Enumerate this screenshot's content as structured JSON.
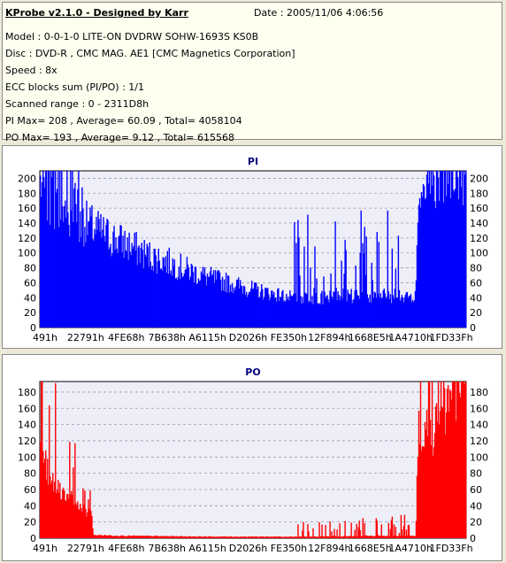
{
  "header": {
    "title": "KProbe v2.1.0 - Designed by Karr",
    "date": "Date : 2005/11/06 4:06:56",
    "lines": [
      "Model : 0-0-1-0 LITE-ON DVDRW SOHW-1693S KS0B",
      "Disc : DVD-R , CMC MAG. AE1 [CMC Magnetics Corporation]",
      "Speed : 8x",
      "ECC blocks sum (PI/PO) : 1/1",
      "Scanned range : 0 - 2311D8h",
      "PI Max= 208 , Average= 60.09 , Total= 4058104",
      "PO Max= 193 , Average= 9.12 , Total= 615568"
    ]
  },
  "colors": {
    "pi": "#0000ff",
    "po": "#ff0000",
    "plot_bg": "#eeeef8",
    "title": "#000080"
  },
  "chart_data": [
    {
      "type": "bar",
      "title": "PI",
      "color": "#0000ff",
      "ylim": [
        0,
        210
      ],
      "yticks": [
        0,
        20,
        40,
        60,
        80,
        100,
        120,
        140,
        160,
        180,
        200
      ],
      "xtick_labels": [
        "491h",
        "22791h",
        "4FE68h",
        "7B638h",
        "A6115h",
        "D2026h",
        "FE350h",
        "12F894h",
        "1668E5h",
        "1A4710h",
        "1FD33Fh"
      ],
      "grid": true,
      "envelope": [
        [
          0,
          200
        ],
        [
          0.015,
          185
        ],
        [
          0.03,
          170
        ],
        [
          0.06,
          158
        ],
        [
          0.1,
          145
        ],
        [
          0.15,
          128
        ],
        [
          0.2,
          115
        ],
        [
          0.25,
          100
        ],
        [
          0.3,
          90
        ],
        [
          0.35,
          78
        ],
        [
          0.4,
          68
        ],
        [
          0.45,
          60
        ],
        [
          0.5,
          52
        ],
        [
          0.55,
          46
        ],
        [
          0.6,
          40
        ],
        [
          0.62,
          40
        ],
        [
          0.7,
          42
        ],
        [
          0.8,
          45
        ],
        [
          0.85,
          42
        ],
        [
          0.88,
          45
        ],
        [
          0.89,
          208
        ],
        [
          1,
          208
        ]
      ],
      "spikes": [
        [
          0.02,
          0.1,
          0.3
        ],
        [
          0.58,
          0.85,
          0.9
        ],
        [
          0.89,
          1.0,
          0.05
        ]
      ]
    },
    {
      "type": "bar",
      "title": "PO",
      "color": "#ff0000",
      "ylim": [
        0,
        193
      ],
      "yticks": [
        0,
        20,
        40,
        60,
        80,
        100,
        120,
        140,
        160,
        180
      ],
      "xtick_labels": [
        "491h",
        "22791h",
        "4FE68h",
        "7B638h",
        "A6115h",
        "D2026h",
        "FE350h",
        "12F894h",
        "1668E5h",
        "1A4710h",
        "1FD33Fh"
      ],
      "grid": true,
      "envelope": [
        [
          0,
          105
        ],
        [
          0.02,
          80
        ],
        [
          0.04,
          65
        ],
        [
          0.08,
          45
        ],
        [
          0.12,
          30
        ],
        [
          0.125,
          4
        ],
        [
          0.2,
          3
        ],
        [
          0.4,
          2
        ],
        [
          0.6,
          2
        ],
        [
          0.88,
          3
        ],
        [
          0.885,
          95
        ],
        [
          0.93,
          140
        ],
        [
          0.97,
          175
        ],
        [
          1,
          185
        ]
      ],
      "spikes": [
        [
          0.0,
          0.125,
          0.6
        ],
        [
          0.6,
          0.88,
          3
        ],
        [
          0.885,
          1.0,
          0.5
        ]
      ]
    }
  ]
}
